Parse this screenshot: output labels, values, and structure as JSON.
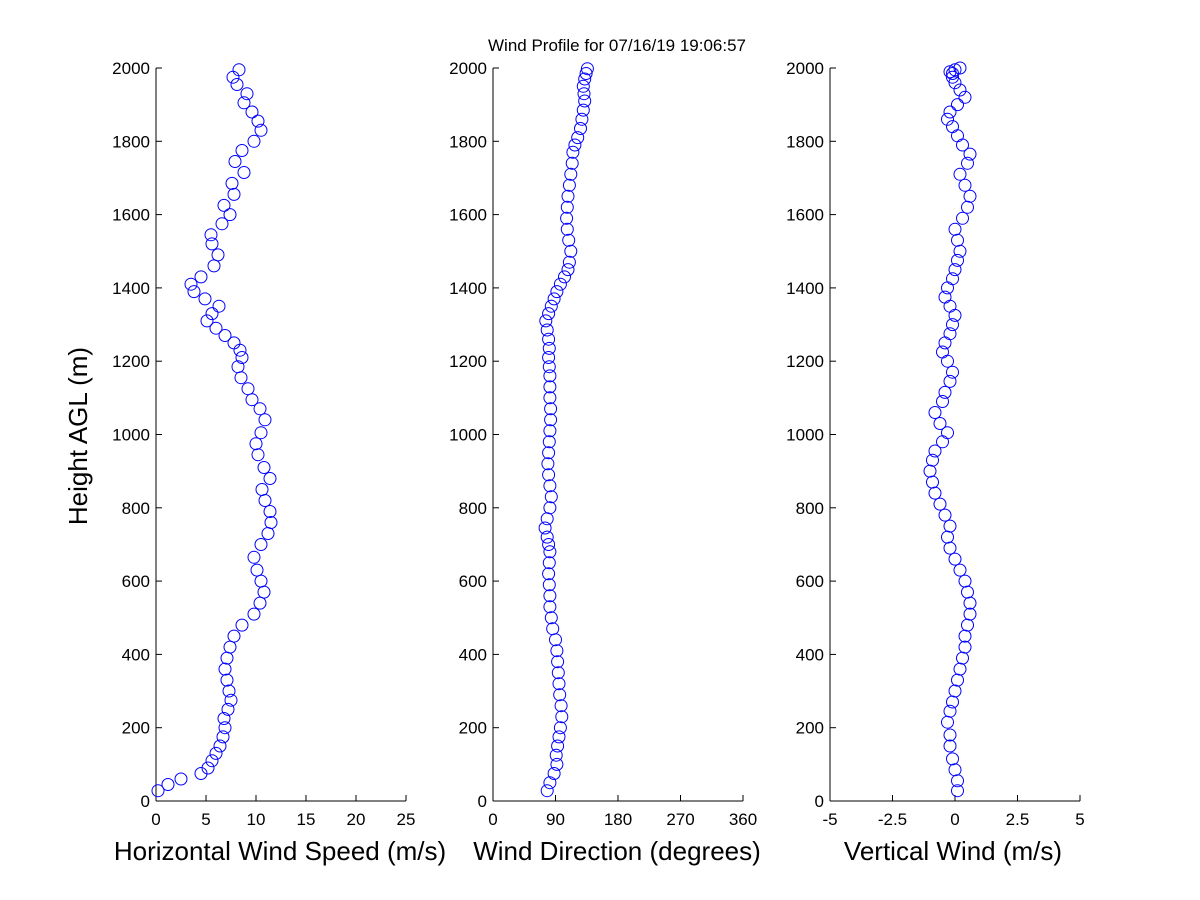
{
  "figure": {
    "title": "Wind Profile for  07/16/19 19:06:57",
    "ylabel": "Height AGL (m)"
  },
  "colors": {
    "marker": "#0000ff",
    "axis": "#000000",
    "background": "#ffffff"
  },
  "chart_data": [
    {
      "type": "scatter",
      "xlabel": "Horizontal Wind Speed (m/s)",
      "ylabel": "Height AGL (m)",
      "xlim": [
        0,
        25
      ],
      "ylim": [
        0,
        2000
      ],
      "xticks": [
        "0",
        "5",
        "10",
        "15",
        "20",
        "25"
      ],
      "yticks": [
        "0",
        "200",
        "400",
        "600",
        "800",
        "1000",
        "1200",
        "1400",
        "1600",
        "1800",
        "2000"
      ],
      "grid": false,
      "marker": "open-circle",
      "series": [
        {
          "x": [
            0.2,
            1.2,
            2.5,
            4.5,
            5.2,
            5.6,
            6.0,
            6.4,
            6.7,
            6.9,
            6.8,
            7.2,
            7.5,
            7.3,
            7.1,
            6.9,
            7.1,
            7.4,
            7.8,
            8.6,
            9.8,
            10.4,
            10.8,
            10.5,
            10.1,
            9.8,
            10.5,
            11.2,
            11.5,
            11.4,
            10.9,
            10.6,
            11.4,
            10.8,
            10.2,
            10.0,
            10.5,
            10.9,
            10.4,
            9.6,
            9.2,
            8.5,
            8.2,
            8.6,
            8.4,
            7.8,
            6.9,
            6.0,
            5.1,
            5.6,
            6.3,
            4.9,
            3.8,
            3.5,
            4.5,
            5.8,
            6.2,
            5.6,
            5.5,
            6.6,
            7.4,
            6.8,
            7.8,
            7.6,
            8.8,
            7.9,
            8.6,
            9.8,
            10.5,
            10.2,
            9.6,
            8.8,
            9.1,
            8.1,
            7.7,
            8.3
          ],
          "y": [
            28,
            45,
            60,
            75,
            90,
            110,
            130,
            150,
            175,
            200,
            225,
            250,
            275,
            300,
            330,
            360,
            390,
            420,
            450,
            480,
            510,
            540,
            570,
            600,
            630,
            665,
            700,
            730,
            760,
            790,
            820,
            850,
            880,
            910,
            945,
            975,
            1005,
            1040,
            1070,
            1095,
            1125,
            1155,
            1185,
            1210,
            1230,
            1250,
            1270,
            1290,
            1310,
            1330,
            1350,
            1370,
            1390,
            1410,
            1430,
            1460,
            1490,
            1520,
            1545,
            1575,
            1600,
            1625,
            1655,
            1685,
            1715,
            1745,
            1775,
            1800,
            1830,
            1855,
            1880,
            1905,
            1930,
            1955,
            1975,
            1995
          ]
        }
      ]
    },
    {
      "type": "scatter",
      "xlabel": "Wind Direction (degrees)",
      "xlim": [
        0,
        360
      ],
      "ylim": [
        0,
        2000
      ],
      "xticks": [
        "0",
        "90",
        "180",
        "270",
        "360"
      ],
      "yticks": [
        "0",
        "200",
        "400",
        "600",
        "800",
        "1000",
        "1200",
        "1400",
        "1600",
        "1800",
        "2000"
      ],
      "grid": false,
      "marker": "open-circle",
      "series": [
        {
          "x": [
            78,
            82,
            88,
            92,
            91,
            93,
            95,
            97,
            99,
            98,
            96,
            95,
            94,
            93,
            92,
            90,
            86,
            84,
            82,
            82,
            81,
            80,
            81,
            82,
            80,
            78,
            75,
            78,
            82,
            84,
            82,
            80,
            79,
            80,
            81,
            82,
            83,
            83,
            82,
            82,
            82,
            81,
            80,
            81,
            80,
            78,
            76,
            80,
            84,
            88,
            92,
            97,
            103,
            108,
            110,
            112,
            109,
            107,
            106,
            107,
            108,
            110,
            112,
            114,
            115,
            118,
            122,
            126,
            128,
            130,
            132,
            131,
            130,
            132,
            134,
            136
          ],
          "y": [
            28,
            50,
            75,
            100,
            125,
            150,
            175,
            200,
            230,
            260,
            290,
            320,
            350,
            380,
            410,
            440,
            470,
            500,
            530,
            560,
            590,
            620,
            650,
            680,
            700,
            720,
            745,
            770,
            800,
            830,
            860,
            890,
            920,
            950,
            980,
            1010,
            1040,
            1070,
            1100,
            1130,
            1160,
            1185,
            1210,
            1235,
            1260,
            1285,
            1310,
            1330,
            1350,
            1370,
            1390,
            1410,
            1430,
            1450,
            1470,
            1500,
            1530,
            1560,
            1590,
            1620,
            1650,
            1680,
            1710,
            1740,
            1770,
            1790,
            1810,
            1835,
            1860,
            1885,
            1910,
            1930,
            1950,
            1970,
            1985,
            1998
          ]
        }
      ]
    },
    {
      "type": "scatter",
      "xlabel": "Vertical Wind (m/s)",
      "xlim": [
        -5,
        5
      ],
      "ylim": [
        0,
        2000
      ],
      "xticks": [
        "-5",
        "-2.5",
        "0",
        "2.5",
        "5"
      ],
      "yticks": [
        "0",
        "200",
        "400",
        "600",
        "800",
        "1000",
        "1200",
        "1400",
        "1600",
        "1800",
        "2000"
      ],
      "grid": false,
      "marker": "open-circle",
      "series": [
        {
          "x": [
            0.1,
            0.1,
            0.0,
            -0.1,
            -0.2,
            -0.2,
            -0.3,
            -0.2,
            -0.1,
            0.0,
            0.1,
            0.2,
            0.3,
            0.4,
            0.4,
            0.5,
            0.6,
            0.6,
            0.5,
            0.4,
            0.2,
            0.0,
            -0.2,
            -0.3,
            -0.2,
            -0.4,
            -0.6,
            -0.8,
            -0.9,
            -1.0,
            -0.9,
            -0.8,
            -0.5,
            -0.3,
            -0.6,
            -0.8,
            -0.5,
            -0.4,
            -0.2,
            -0.1,
            -0.3,
            -0.5,
            -0.4,
            -0.2,
            -0.1,
            0.0,
            -0.2,
            -0.4,
            -0.3,
            -0.1,
            0.0,
            0.1,
            0.2,
            0.1,
            0.0,
            0.3,
            0.5,
            0.6,
            0.4,
            0.2,
            0.5,
            0.6,
            0.3,
            0.1,
            -0.1,
            -0.3,
            -0.2,
            0.1,
            0.4,
            0.2,
            0.0,
            -0.1,
            -0.2,
            0.0,
            0.2,
            -0.1
          ],
          "y": [
            28,
            55,
            85,
            115,
            150,
            180,
            215,
            245,
            270,
            300,
            330,
            360,
            390,
            420,
            450,
            480,
            510,
            540,
            570,
            600,
            630,
            660,
            690,
            720,
            750,
            780,
            810,
            840,
            870,
            900,
            930,
            955,
            980,
            1005,
            1030,
            1060,
            1090,
            1115,
            1145,
            1170,
            1200,
            1225,
            1250,
            1275,
            1300,
            1325,
            1350,
            1375,
            1400,
            1425,
            1450,
            1475,
            1500,
            1530,
            1560,
            1590,
            1620,
            1650,
            1680,
            1710,
            1740,
            1765,
            1790,
            1815,
            1840,
            1860,
            1880,
            1900,
            1920,
            1940,
            1960,
            1975,
            1990,
            1995,
            2000,
            1985
          ]
        }
      ]
    }
  ]
}
